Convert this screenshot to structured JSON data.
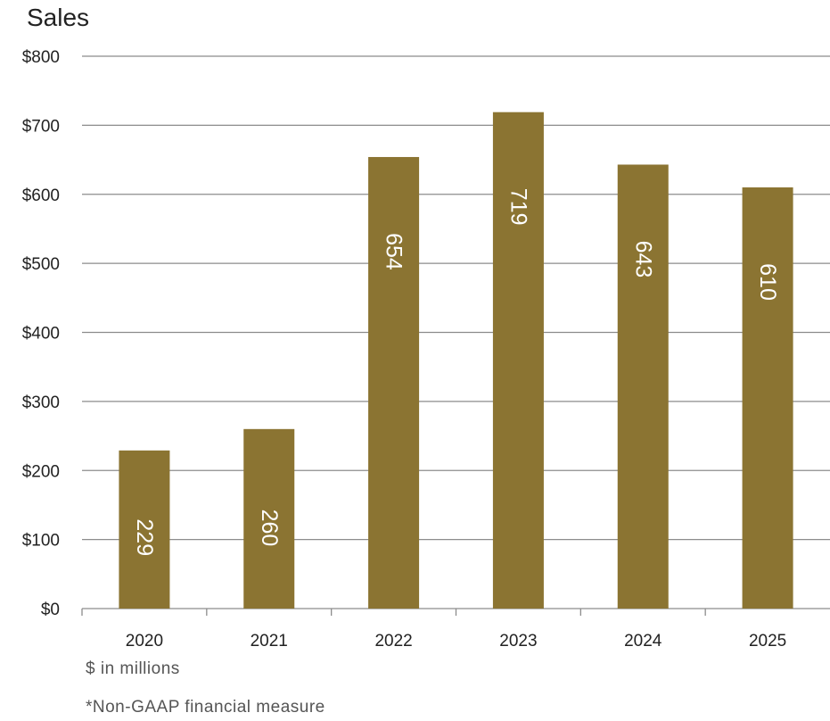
{
  "chart_data": {
    "type": "bar",
    "title": "Sales",
    "categories": [
      "2020",
      "2021",
      "2022",
      "2023",
      "2024",
      "2025"
    ],
    "values": [
      229,
      260,
      654,
      719,
      643,
      610
    ],
    "data_labels": [
      "229",
      "260",
      "654",
      "719",
      "643",
      "610"
    ],
    "ylim": [
      0,
      800
    ],
    "yticks": [
      0,
      100,
      200,
      300,
      400,
      500,
      600,
      700,
      800
    ],
    "ytick_labels": [
      "$0",
      "$100",
      "$200",
      "$300",
      "$400",
      "$500",
      "$600",
      "$700",
      "$800"
    ],
    "xlabel": "",
    "ylabel": "",
    "grid": true,
    "legend": "none",
    "bar_color": "#8b7432",
    "label_color": "#ffffff"
  },
  "notes": {
    "units": "$ in millions",
    "footnote": "*Non-GAAP financial measure"
  }
}
